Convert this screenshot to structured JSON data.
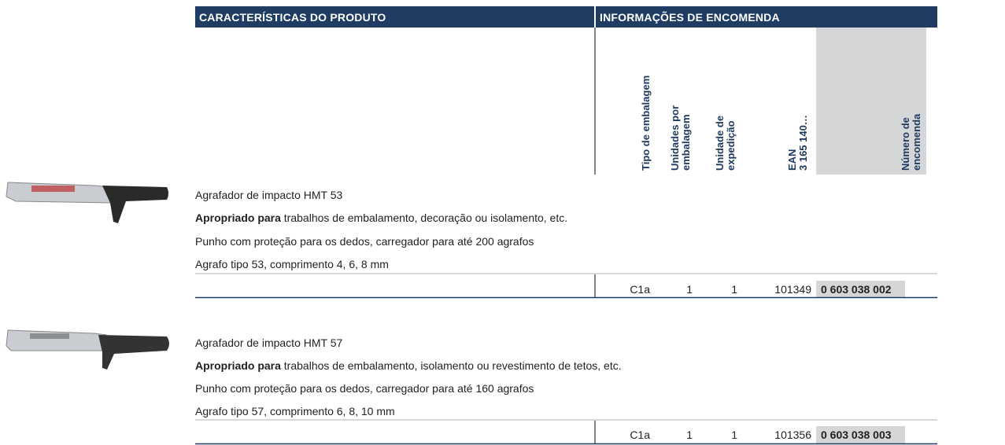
{
  "header": {
    "left": "CARACTERÍSTICAS DO PRODUTO",
    "right": "INFORMAÇÕES DE ENCOMENDA"
  },
  "columns": [
    {
      "lines": [
        "Tipo de embalagem"
      ]
    },
    {
      "lines": [
        "Unidades por",
        "embalagem"
      ]
    },
    {
      "lines": [
        "Unidade de",
        "expedição"
      ]
    },
    {
      "lines": [
        "EAN",
        "3 165 140…"
      ]
    },
    {
      "lines": [
        "Número de",
        "encomenda"
      ]
    }
  ],
  "products": [
    {
      "name": "Agrafador de impacto HMT 53",
      "suitable_label": "Apropriado para",
      "suitable_text": " trabalhos de embalamento, decoração ou isolamento, etc.",
      "grip": "Punho com proteção para os dedos, carregador para até 200 agrafos",
      "staple": "Agrafo tipo 53, comprimento 4, 6, 8 mm",
      "row": [
        "C1a",
        "1",
        "1",
        "101349",
        "0 603 038 002"
      ]
    },
    {
      "name": "Agrafador de impacto HMT 57",
      "suitable_label": "Apropriado para",
      "suitable_text": " trabalhos de embalamento, isolamento ou revestimento de tetos, etc.",
      "grip": "Punho com proteção para os dedos, carregador para até 160 agrafos",
      "staple": "Agrafo tipo 57, comprimento 6, 8, 10 mm",
      "row": [
        "C1a",
        "1",
        "1",
        "101356",
        "0 603 038 003"
      ]
    }
  ]
}
